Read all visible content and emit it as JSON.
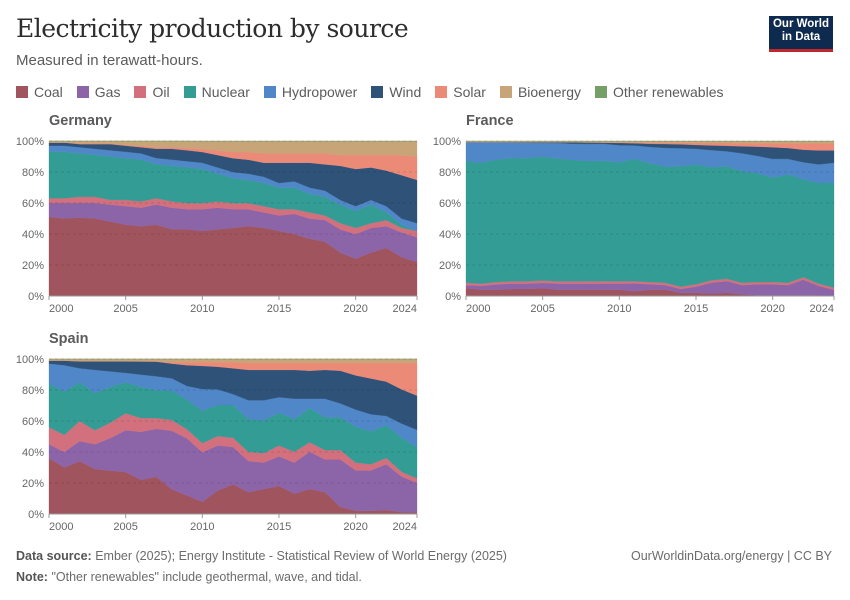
{
  "header": {
    "title": "Electricity production by source",
    "subtitle": "Measured in terawatt-hours.",
    "logo_text": "Our World in Data"
  },
  "legend": [
    {
      "label": "Coal",
      "color": "#a0545d"
    },
    {
      "label": "Gas",
      "color": "#8c64a8"
    },
    {
      "label": "Oil",
      "color": "#d2707e"
    },
    {
      "label": "Nuclear",
      "color": "#339c94"
    },
    {
      "label": "Hydropower",
      "color": "#5087c8"
    },
    {
      "label": "Wind",
      "color": "#2f5279"
    },
    {
      "label": "Solar",
      "color": "#ec8a78"
    },
    {
      "label": "Bioenergy",
      "color": "#c8a579"
    },
    {
      "label": "Other renewables",
      "color": "#74a068"
    }
  ],
  "chart_data": [
    {
      "type": "area",
      "stacked": "100%",
      "title": "Germany",
      "x": [
        2000,
        2001,
        2002,
        2003,
        2004,
        2005,
        2006,
        2007,
        2008,
        2009,
        2010,
        2011,
        2012,
        2013,
        2014,
        2015,
        2016,
        2017,
        2018,
        2019,
        2020,
        2021,
        2022,
        2023,
        2024
      ],
      "x_ticks": [
        "2000",
        "2005",
        "2010",
        "2015",
        "2020",
        "2024"
      ],
      "y_ticks": [
        "0%",
        "20%",
        "40%",
        "60%",
        "80%",
        "100%"
      ],
      "ylim": [
        0,
        100
      ],
      "grid": "horizontal dashed",
      "series": [
        {
          "name": "Coal",
          "values": [
            51,
            50,
            50.5,
            50,
            48,
            46,
            45,
            46,
            43,
            43,
            42,
            43,
            44,
            45,
            44,
            42,
            40,
            37,
            35,
            28,
            24,
            28,
            31,
            25,
            22
          ]
        },
        {
          "name": "Gas",
          "values": [
            9,
            10,
            9.5,
            10,
            11,
            12,
            12,
            13,
            14,
            13,
            14,
            14,
            12,
            11,
            10,
            10,
            13,
            13,
            14,
            15,
            16,
            16,
            14,
            16,
            16
          ]
        },
        {
          "name": "Oil",
          "values": [
            3,
            3,
            4,
            4,
            3,
            4,
            4,
            4,
            4,
            4,
            4,
            4,
            4,
            4,
            4,
            4,
            3,
            4,
            3,
            4,
            4,
            3,
            4,
            3,
            4
          ]
        },
        {
          "name": "Nuclear",
          "values": [
            30,
            30,
            28,
            27,
            28,
            27,
            27,
            22,
            23,
            23,
            22,
            18,
            16,
            15,
            15,
            14,
            14,
            12,
            12,
            12,
            11,
            12,
            5,
            2,
            0
          ]
        },
        {
          "name": "Hydropower",
          "values": [
            4,
            4,
            4,
            4,
            4,
            4,
            4,
            4,
            4,
            4,
            4,
            4,
            4,
            4,
            4,
            3,
            4,
            4,
            4,
            3,
            3,
            3,
            4,
            4,
            5
          ]
        },
        {
          "name": "Wind",
          "values": [
            2,
            2,
            2,
            3,
            4,
            4,
            4,
            6,
            7,
            7,
            7,
            8,
            9,
            9,
            9,
            13,
            12,
            16,
            17,
            22,
            24,
            21,
            23,
            28,
            28
          ]
        },
        {
          "name": "Solar",
          "values": [
            0,
            0,
            0.5,
            0.5,
            0.5,
            0.5,
            1,
            1,
            1,
            1.5,
            2,
            3,
            4,
            5,
            6,
            6,
            6,
            6,
            7,
            7,
            9,
            8,
            10,
            13,
            15
          ]
        },
        {
          "name": "Bioenergy",
          "values": [
            1,
            1,
            1.5,
            1.5,
            1.5,
            2.5,
            3,
            4,
            4,
            4.5,
            5,
            6,
            7,
            7,
            8,
            8,
            8,
            8,
            8,
            9,
            9,
            9,
            9,
            9,
            10
          ]
        },
        {
          "name": "Other renewables",
          "values": [
            0,
            0,
            0,
            0,
            0,
            0,
            0,
            0,
            0,
            0,
            0.1,
            0.1,
            0.1,
            0.1,
            0.1,
            0.1,
            0.1,
            0.1,
            0.1,
            0.1,
            0.1,
            0.1,
            0.1,
            0.1,
            0.1
          ]
        }
      ]
    },
    {
      "type": "area",
      "stacked": "100%",
      "title": "France",
      "x": [
        2000,
        2001,
        2002,
        2003,
        2004,
        2005,
        2006,
        2007,
        2008,
        2009,
        2010,
        2011,
        2012,
        2013,
        2014,
        2015,
        2016,
        2017,
        2018,
        2019,
        2020,
        2021,
        2022,
        2023,
        2024
      ],
      "x_ticks": [
        "2000",
        "2005",
        "2010",
        "2015",
        "2020",
        "2024"
      ],
      "y_ticks": [
        "0%",
        "20%",
        "40%",
        "60%",
        "80%",
        "100%"
      ],
      "ylim": [
        0,
        100
      ],
      "grid": "horizontal dashed",
      "series": [
        {
          "name": "Coal",
          "values": [
            5,
            4,
            4,
            4.5,
            4.5,
            5,
            4,
            4,
            4,
            4,
            4,
            3,
            4,
            4,
            2,
            2,
            1.5,
            2,
            1,
            0.5,
            0.5,
            0.5,
            0.5,
            0.3,
            0.2
          ]
        },
        {
          "name": "Gas",
          "values": [
            2,
            2.5,
            3.5,
            3.5,
            3.5,
            3.5,
            4,
            4,
            4,
            4,
            4,
            5,
            3.5,
            3,
            2.5,
            4,
            7,
            7.5,
            6,
            7,
            7,
            6.5,
            10,
            6.2,
            3.8
          ]
        },
        {
          "name": "Oil",
          "values": [
            1.5,
            1.5,
            1.5,
            1.5,
            1.5,
            1.5,
            1.5,
            1.5,
            1.5,
            1.5,
            1.5,
            1.5,
            1.5,
            1.5,
            1.5,
            1.5,
            1.5,
            1.5,
            1.5,
            1.5,
            1.5,
            1.5,
            1.5,
            1.5,
            1.5
          ]
        },
        {
          "name": "Nuclear",
          "values": [
            78.5,
            78,
            79,
            79.5,
            79.5,
            80,
            79.5,
            78.5,
            77.5,
            77.5,
            76.5,
            78.5,
            76,
            74.5,
            77,
            76.5,
            72,
            72,
            71.5,
            70,
            67,
            69.5,
            63,
            65,
            67.5
          ]
        },
        {
          "name": "Hydropower",
          "values": [
            12,
            13,
            11,
            10,
            10,
            9,
            10,
            10.5,
            11,
            11,
            11,
            8.5,
            10.5,
            12,
            11.5,
            10,
            11,
            9.5,
            11.5,
            11,
            12,
            10,
            11,
            12,
            13
          ]
        },
        {
          "name": "Wind",
          "values": [
            0.2,
            0.2,
            0.2,
            0.3,
            0.4,
            0.5,
            0.5,
            1,
            1,
            0.8,
            1.5,
            1.5,
            2,
            2.5,
            2.5,
            2.5,
            3,
            3.5,
            4.5,
            6,
            7.5,
            7,
            8,
            9,
            8
          ]
        },
        {
          "name": "Solar",
          "values": [
            0,
            0,
            0,
            0,
            0,
            0,
            0,
            0,
            0,
            0.1,
            0.2,
            0.4,
            0.7,
            0.8,
            1,
            1.3,
            1.5,
            1.8,
            2,
            2.2,
            2.5,
            3,
            4,
            4.5,
            4.5
          ]
        },
        {
          "name": "Bioenergy",
          "values": [
            0.6,
            0.6,
            0.6,
            0.6,
            0.6,
            0.6,
            0.7,
            0.7,
            0.8,
            0.8,
            0.9,
            0.9,
            1,
            1,
            1,
            1.1,
            1.2,
            1.2,
            1.3,
            1.3,
            1.4,
            1.4,
            1.5,
            1.5,
            1.5
          ]
        },
        {
          "name": "Other renewables",
          "values": [
            0.1,
            0.1,
            0.1,
            0.1,
            0.1,
            0.1,
            0.1,
            0.1,
            0.1,
            0.1,
            0.1,
            0.1,
            0.1,
            0.1,
            0.1,
            0.1,
            0.1,
            0.1,
            0.1,
            0.1,
            0.1,
            0.1,
            0.1,
            0.1,
            0.1
          ]
        }
      ]
    },
    {
      "type": "area",
      "stacked": "100%",
      "title": "Spain",
      "x": [
        2000,
        2001,
        2002,
        2003,
        2004,
        2005,
        2006,
        2007,
        2008,
        2009,
        2010,
        2011,
        2012,
        2013,
        2014,
        2015,
        2016,
        2017,
        2018,
        2019,
        2020,
        2021,
        2022,
        2023,
        2024
      ],
      "x_ticks": [
        "2000",
        "2005",
        "2010",
        "2015",
        "2020",
        "2024"
      ],
      "y_ticks": [
        "0%",
        "20%",
        "40%",
        "60%",
        "80%",
        "100%"
      ],
      "ylim": [
        0,
        100
      ],
      "grid": "horizontal dashed",
      "series": [
        {
          "name": "Coal",
          "values": [
            36,
            30,
            34,
            29,
            28,
            27,
            22,
            24,
            16,
            12,
            8,
            15,
            19,
            14,
            16,
            18,
            13,
            16,
            14,
            4.5,
            2,
            2,
            2.5,
            1.2,
            1
          ]
        },
        {
          "name": "Gas",
          "values": [
            9,
            10,
            13,
            16,
            21,
            27,
            31,
            31,
            38,
            37,
            32,
            29,
            24,
            20,
            17,
            19,
            20,
            24,
            21,
            30.5,
            26,
            26,
            29.5,
            22.8,
            19
          ]
        },
        {
          "name": "Oil",
          "values": [
            11,
            11,
            13,
            9,
            10,
            11,
            9,
            7,
            7,
            6,
            6,
            6,
            6,
            6,
            6,
            7,
            7,
            6,
            6,
            6,
            5,
            4,
            4,
            3,
            3
          ]
        },
        {
          "name": "Nuclear",
          "values": [
            28,
            28,
            25,
            24,
            23,
            20,
            20,
            18,
            19,
            19,
            21,
            20,
            21,
            21,
            21,
            21,
            21,
            22,
            21,
            21,
            23,
            21,
            21,
            22,
            20
          ]
        },
        {
          "name": "Hydropower",
          "values": [
            13,
            17,
            9,
            15,
            10,
            6,
            8,
            9,
            8,
            9,
            14,
            10,
            7,
            12,
            13,
            10,
            13,
            6,
            12,
            9,
            11,
            11,
            6,
            9,
            11
          ]
        },
        {
          "name": "Wind",
          "values": [
            2,
            3,
            4.5,
            5.5,
            6.5,
            7.5,
            8.5,
            9.5,
            9.5,
            13.5,
            15,
            14.5,
            16.5,
            19.5,
            19.5,
            17.5,
            18.5,
            18,
            18.5,
            21,
            22,
            23,
            22,
            22,
            22
          ]
        },
        {
          "name": "Solar",
          "values": [
            0,
            0,
            0,
            0,
            0,
            0,
            0.1,
            0.2,
            1,
            2,
            2.5,
            3,
            4,
            4.5,
            4.5,
            4.5,
            4.5,
            5,
            4.5,
            5,
            8,
            10,
            12,
            17,
            21
          ]
        },
        {
          "name": "Bioenergy",
          "values": [
            1,
            1,
            1.5,
            1.5,
            1.5,
            1.5,
            1.5,
            1.5,
            2,
            2,
            2,
            2,
            2,
            2.5,
            2.5,
            2.5,
            2.5,
            2.5,
            2.5,
            2.5,
            2.5,
            2.5,
            2.5,
            2.5,
            2.5
          ]
        },
        {
          "name": "Other renewables",
          "values": [
            0,
            0,
            0,
            0,
            0,
            0,
            0,
            0,
            0,
            0,
            0,
            0,
            0,
            0,
            0,
            0,
            0,
            0,
            0,
            0,
            0,
            0,
            0,
            0,
            0
          ]
        }
      ]
    }
  ],
  "footer": {
    "source_label": "Data source:",
    "source_text": "Ember (2025); Energy Institute - Statistical Review of World Energy (2025)",
    "note_label": "Note:",
    "note_text": "\"Other renewables\" include geothermal, wave, and tidal.",
    "credit": "OurWorldinData.org/energy | CC BY"
  }
}
